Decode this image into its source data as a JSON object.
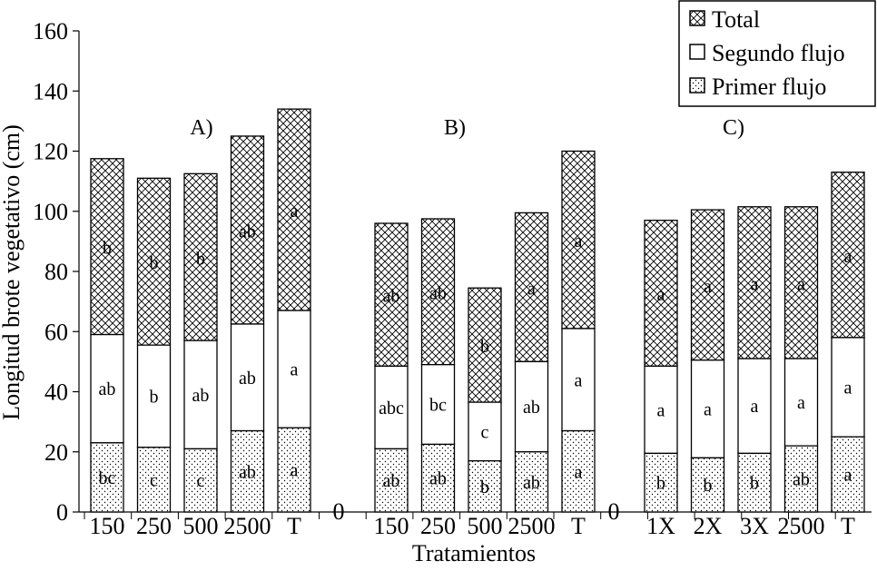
{
  "chart_data": {
    "type": "bar",
    "stacked": true,
    "xlabel": "Tratamientos",
    "ylabel": "Longitud brote vegetativo (cm)",
    "ylim": [
      0,
      160
    ],
    "yticks": [
      "0",
      "20",
      "40",
      "60",
      "80",
      "100",
      "120",
      "140",
      "160"
    ],
    "grid": false,
    "legend_position": "top-right",
    "legend": [
      "Total",
      "Segundo flujo",
      "Primer flujo"
    ],
    "gap_labels": [
      "0",
      "0"
    ],
    "series": [
      {
        "name": "Primer flujo",
        "pattern": "dots"
      },
      {
        "name": "Segundo flujo",
        "pattern": "plain"
      },
      {
        "name": "Total",
        "pattern": "crosshatch"
      }
    ],
    "panels": [
      {
        "label": "A)",
        "categories": [
          "150",
          "250",
          "500",
          "2500",
          "T"
        ],
        "primer_flujo": [
          23,
          21.5,
          21,
          27,
          28
        ],
        "segundo_flujo_cum": [
          59,
          55.5,
          57,
          62.5,
          67
        ],
        "total": [
          117.5,
          111,
          112.5,
          125,
          134
        ],
        "letters_primer": [
          "bc",
          "c",
          "c",
          "ab",
          "a"
        ],
        "letters_segundo": [
          "ab",
          "b",
          "ab",
          "ab",
          "a"
        ],
        "letters_total": [
          "b",
          "b",
          "b",
          "ab",
          "a"
        ]
      },
      {
        "label": "B)",
        "categories": [
          "150",
          "250",
          "500",
          "2500",
          "T"
        ],
        "primer_flujo": [
          21,
          22.5,
          17,
          20,
          27
        ],
        "segundo_flujo_cum": [
          48.5,
          49,
          36.5,
          50,
          61
        ],
        "total": [
          96,
          97.5,
          74.5,
          99.5,
          120
        ],
        "letters_primer": [
          "ab",
          "ab",
          "b",
          "ab",
          "a"
        ],
        "letters_segundo": [
          "abc",
          "bc",
          "c",
          "ab",
          "a"
        ],
        "letters_total": [
          "ab",
          "ab",
          "b",
          "a",
          "a"
        ]
      },
      {
        "label": "C)",
        "categories": [
          "1X",
          "2X",
          "3X",
          "2500",
          "T"
        ],
        "primer_flujo": [
          19.5,
          18,
          19.5,
          22,
          25
        ],
        "segundo_flujo_cum": [
          48.5,
          50.5,
          51,
          51,
          58
        ],
        "total": [
          97,
          100.5,
          101.5,
          101.5,
          113
        ],
        "letters_primer": [
          "b",
          "b",
          "b",
          "ab",
          "a"
        ],
        "letters_segundo": [
          "a",
          "a",
          "a",
          "a",
          "a"
        ],
        "letters_total": [
          "a",
          "a",
          "a",
          "a",
          "a"
        ]
      }
    ]
  }
}
